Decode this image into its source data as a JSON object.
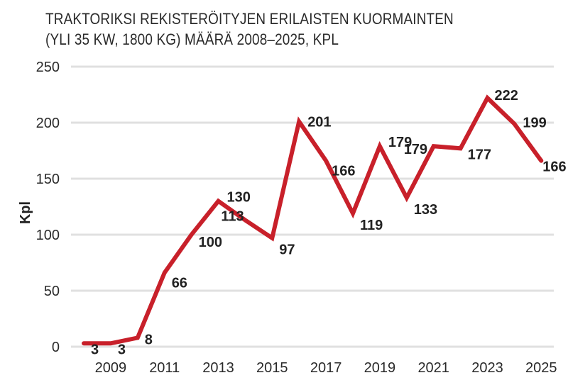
{
  "chart_data": {
    "type": "line",
    "title_line1": "TRAKTORIKSI REKISTERÖITYJEN ERILAISTEN KUORMAINTEN",
    "title_line2": "(YLI 35 KW, 1800 KG) MÄÄRÄ 2008–2025, KPL",
    "xlabel": "",
    "ylabel": "Kpl",
    "ylim": [
      0,
      250
    ],
    "yticks": [
      "0",
      "50",
      "100",
      "150",
      "200",
      "250"
    ],
    "xticks": [
      "2009",
      "2011",
      "2013",
      "2015",
      "2017",
      "2019",
      "2021",
      "2023",
      "2025"
    ],
    "grid": true,
    "line_color": "#c8202a",
    "x": [
      2008,
      2009,
      2010,
      2011,
      2012,
      2013,
      2014,
      2015,
      2016,
      2017,
      2018,
      2019,
      2020,
      2021,
      2022,
      2023,
      2024,
      2025
    ],
    "values": [
      3,
      3,
      8,
      66,
      100,
      130,
      113,
      97,
      201,
      166,
      119,
      179,
      133,
      179,
      177,
      222,
      199,
      166
    ],
    "data_labels": [
      "3",
      "3",
      "8",
      "66",
      "100",
      "130",
      "113",
      "97",
      "201",
      "166",
      "119",
      "179",
      "133",
      "179",
      "177",
      "222",
      "199",
      "166"
    ]
  }
}
